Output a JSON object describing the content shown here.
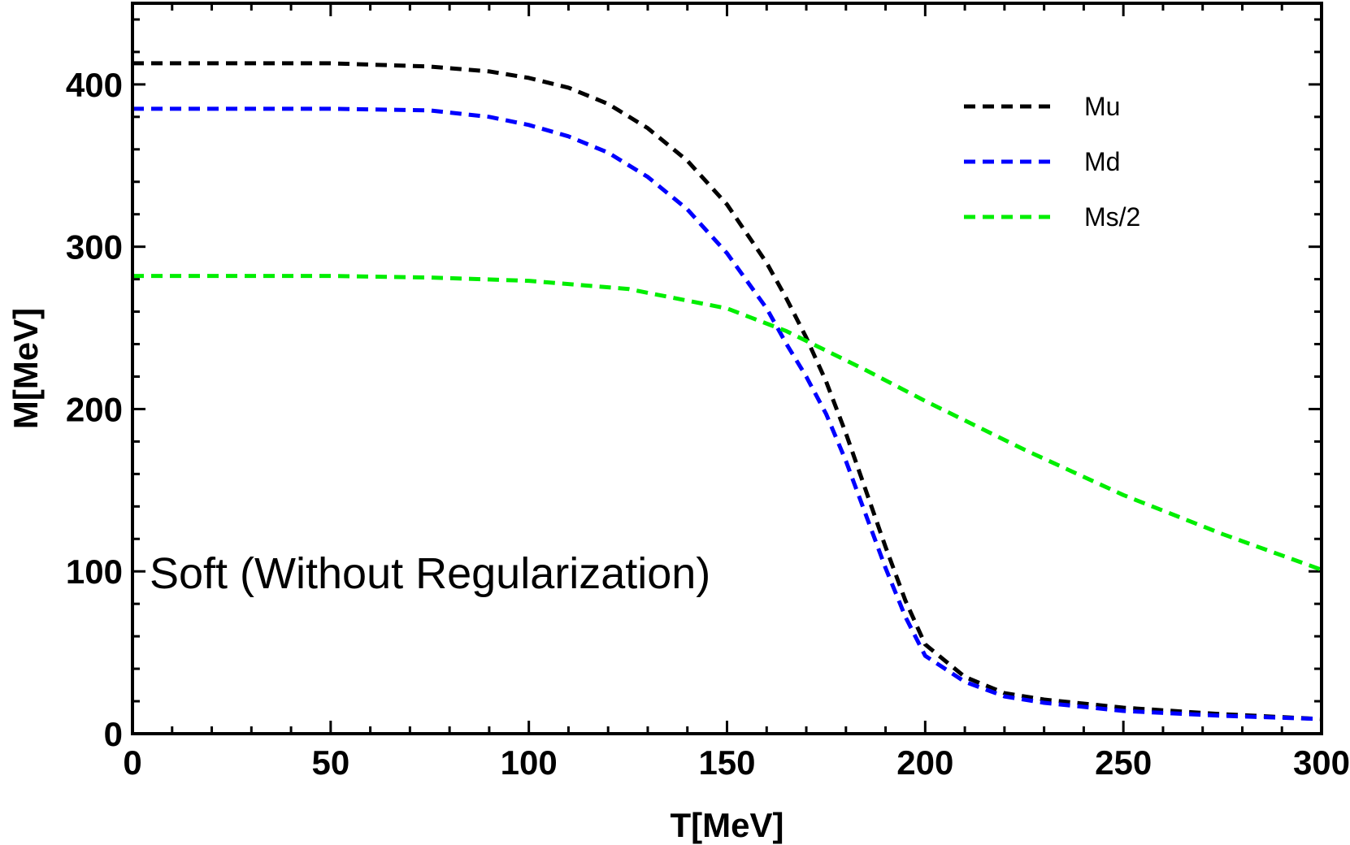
{
  "chart_data": {
    "type": "line",
    "title": "",
    "xlabel": "T[MeV]",
    "ylabel": "M[MeV]",
    "xlim": [
      0,
      300
    ],
    "ylim": [
      0,
      450
    ],
    "x_ticks": [
      0,
      50,
      100,
      150,
      200,
      250,
      300
    ],
    "y_ticks": [
      0,
      100,
      200,
      300,
      400
    ],
    "x_minor_step": 10,
    "y_minor_step": 20,
    "grid": false,
    "legend_position": "top-right",
    "annotation": "Soft (Without Regularization)",
    "series": [
      {
        "name": "Mu",
        "color": "#000000",
        "style": "dashed",
        "x": [
          0,
          25,
          50,
          75,
          90,
          100,
          110,
          120,
          130,
          140,
          150,
          160,
          165,
          170,
          175,
          180,
          185,
          190,
          195,
          200,
          210,
          220,
          230,
          250,
          275,
          300
        ],
        "y": [
          413,
          413,
          413,
          411,
          408,
          404,
          398,
          388,
          373,
          353,
          326,
          290,
          268,
          244,
          217,
          185,
          150,
          115,
          82,
          55,
          35,
          25,
          21,
          16,
          12,
          9
        ]
      },
      {
        "name": "Md",
        "color": "#0000ff",
        "style": "dashed",
        "x": [
          0,
          25,
          50,
          75,
          90,
          100,
          110,
          120,
          130,
          140,
          150,
          160,
          165,
          170,
          175,
          180,
          185,
          190,
          195,
          200,
          210,
          220,
          230,
          250,
          275,
          300
        ],
        "y": [
          385,
          385,
          385,
          384,
          380,
          375,
          368,
          358,
          343,
          323,
          296,
          262,
          240,
          220,
          197,
          168,
          135,
          102,
          72,
          48,
          32,
          23,
          19,
          14,
          11,
          9
        ]
      },
      {
        "name": "Ms/2",
        "color": "#00ee00",
        "style": "dashed",
        "x": [
          0,
          25,
          50,
          75,
          100,
          125,
          150,
          165,
          175,
          185,
          200,
          225,
          250,
          275,
          300
        ],
        "y": [
          282,
          282,
          282,
          281,
          279,
          274,
          262,
          248,
          236,
          224,
          205,
          175,
          147,
          123,
          101
        ]
      }
    ]
  }
}
